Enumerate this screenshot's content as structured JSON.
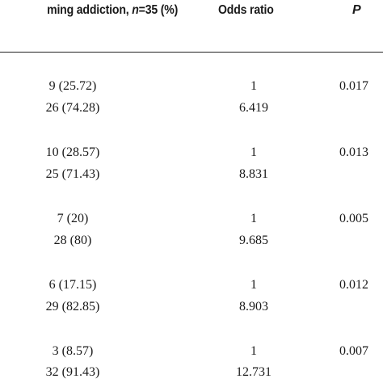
{
  "header": {
    "col1_prefix": "ming addiction, ",
    "col1_n": "n",
    "col1_suffix": "=35 (%)",
    "col2": "Odds ratio",
    "col3": "P"
  },
  "rows": [
    {
      "count": "9 (25.72)",
      "odds": "1",
      "p": "0.017"
    },
    {
      "count": "26 (74.28)",
      "odds": "6.419",
      "p": ""
    },
    {
      "count": "10 (28.57)",
      "odds": "1",
      "p": "0.013"
    },
    {
      "count": "25 (71.43)",
      "odds": "8.831",
      "p": ""
    },
    {
      "count": "7 (20)",
      "odds": "1",
      "p": "0.005"
    },
    {
      "count": "28 (80)",
      "odds": "9.685",
      "p": ""
    },
    {
      "count": "6 (17.15)",
      "odds": "1",
      "p": "0.012"
    },
    {
      "count": "29 (82.85)",
      "odds": "8.903",
      "p": ""
    },
    {
      "count": "3 (8.57)",
      "odds": "1",
      "p": "0.007"
    },
    {
      "count": "32 (91.43)",
      "odds": "12.731",
      "p": ""
    }
  ]
}
